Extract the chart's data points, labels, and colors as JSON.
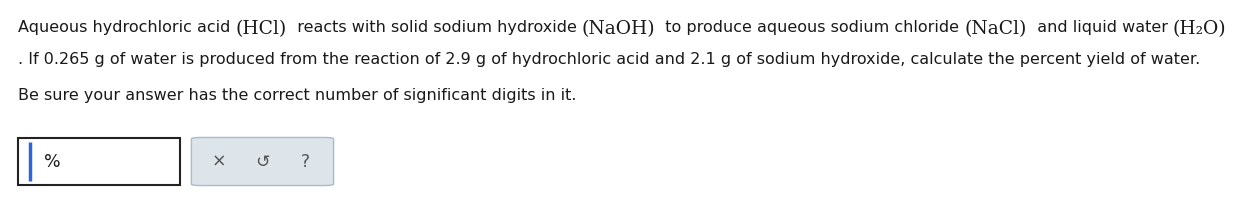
{
  "bg_color": "#ffffff",
  "text_color": "#1a1a1a",
  "line1_parts": [
    [
      "Aqueous hydrochloric acid ",
      false
    ],
    [
      "(HCl)",
      true
    ],
    [
      "  reacts with solid sodium hydroxide ",
      false
    ],
    [
      "(NaOH)",
      true
    ],
    [
      "  to produce aqueous sodium chloride ",
      false
    ],
    [
      "(NaCl)",
      true
    ],
    [
      "  and liquid water ",
      false
    ],
    [
      "(H₂O)",
      true
    ]
  ],
  "line2": ". If 0.265 g of water is produced from the reaction of 2.9 g of hydrochloric acid and 2.1 g of sodium hydroxide, calculate the percent yield of water.",
  "line3": "Be sure your answer has the correct number of significant digits in it.",
  "percent_label": "%",
  "button_bg": "#dde4ea",
  "button_border": "#aabbcc",
  "input_border": "#222222",
  "cursor_color": "#3366cc",
  "symbol_x": "×",
  "symbol_undo": "↺",
  "symbol_q": "?",
  "symbol_color": "#555555",
  "font_size_main": 11.5,
  "font_size_formula": 13.5
}
